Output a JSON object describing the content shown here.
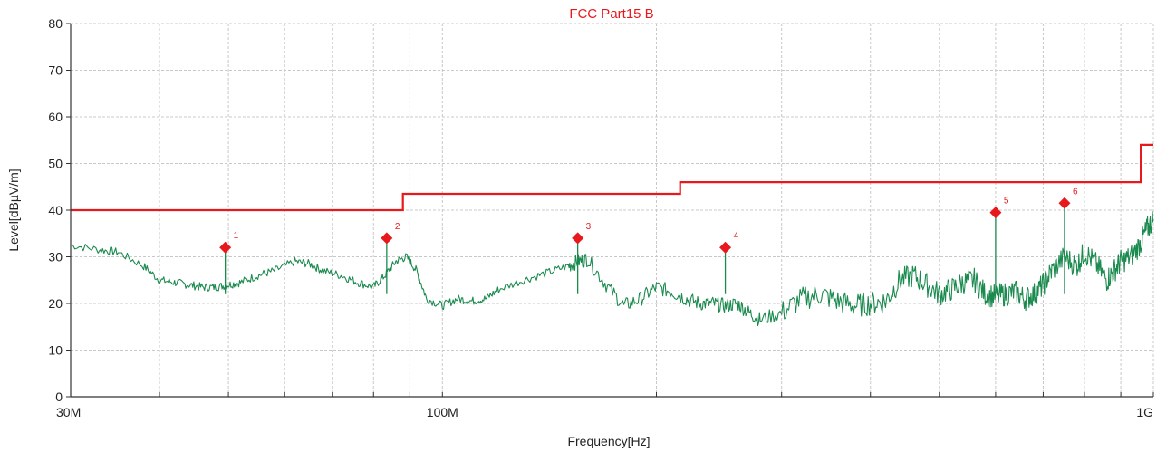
{
  "chart_data": {
    "type": "line",
    "title": "FCC Part15 B",
    "xlabel": "Frequency[Hz]",
    "ylabel": "Level[dBµV/m]",
    "x_scale": "log",
    "xlim": [
      30000000,
      1000000000
    ],
    "ylim": [
      0,
      80
    ],
    "y_ticks": [
      0,
      10,
      20,
      30,
      40,
      50,
      60,
      70,
      80
    ],
    "x_tick_labels": [
      {
        "value": 30000000,
        "label": "30M"
      },
      {
        "value": 100000000,
        "label": "100M"
      },
      {
        "value": 1000000000,
        "label": "1G"
      }
    ],
    "grid": true,
    "colors": {
      "limit": "#e8191c",
      "trace": "#1a8a4e",
      "marker": "#e8191c",
      "grid": "#c8c8c8",
      "title": "#e8191c"
    },
    "series": [
      {
        "role": "limit",
        "x": [
          30000000,
          88000000,
          88000000,
          216000000,
          216000000,
          960000000,
          960000000,
          1000000000
        ],
        "y": [
          40,
          40,
          43.5,
          43.5,
          46,
          46,
          54,
          54
        ]
      },
      {
        "role": "measurement",
        "x": [
          30000000,
          33000000,
          35000000,
          38000000,
          40000000,
          42000000,
          44000000,
          46000000,
          48000000,
          50000000,
          52000000,
          55000000,
          58000000,
          62000000,
          65000000,
          68000000,
          72000000,
          76000000,
          80000000,
          83000000,
          86000000,
          89000000,
          92000000,
          95000000,
          100000000,
          105000000,
          110000000,
          115000000,
          120000000,
          130000000,
          140000000,
          150000000,
          155000000,
          160000000,
          170000000,
          180000000,
          190000000,
          200000000,
          210000000,
          220000000,
          230000000,
          240000000,
          250000000,
          260000000,
          270000000,
          280000000,
          300000000,
          320000000,
          340000000,
          360000000,
          380000000,
          400000000,
          420000000,
          440000000,
          460000000,
          480000000,
          500000000,
          520000000,
          540000000,
          560000000,
          580000000,
          600000000,
          620000000,
          640000000,
          660000000,
          680000000,
          700000000,
          720000000,
          750000000,
          780000000,
          800000000,
          830000000,
          860000000,
          880000000,
          900000000,
          930000000,
          960000000,
          980000000,
          1000000000
        ],
        "y": [
          32.5,
          31.5,
          31,
          28,
          25,
          24.5,
          24,
          23.5,
          23.5,
          24,
          24.5,
          26,
          27,
          29,
          28.5,
          27,
          26,
          24.5,
          23.5,
          26,
          29,
          30,
          27,
          21,
          19.5,
          21,
          20.5,
          21,
          23,
          25,
          26.5,
          28,
          29,
          29.5,
          24,
          19.5,
          21,
          23.5,
          22.5,
          21,
          20,
          20,
          19.5,
          20,
          18,
          16.5,
          18,
          21,
          22,
          20.5,
          19.5,
          20,
          20.5,
          25,
          26,
          24,
          22,
          23,
          24.5,
          25,
          22,
          21.5,
          22,
          22.5,
          21,
          22,
          24,
          27,
          30,
          28,
          31,
          28.5,
          25,
          27,
          29,
          30,
          33,
          36,
          38
        ]
      }
    ],
    "markers": [
      {
        "label": "1",
        "x": 49500000,
        "y": 32
      },
      {
        "label": "2",
        "x": 83500000,
        "y": 34
      },
      {
        "label": "3",
        "x": 155000000,
        "y": 34
      },
      {
        "label": "4",
        "x": 250000000,
        "y": 32
      },
      {
        "label": "5",
        "x": 600000000,
        "y": 39.5
      },
      {
        "label": "6",
        "x": 750000000,
        "y": 41.5
      }
    ]
  }
}
